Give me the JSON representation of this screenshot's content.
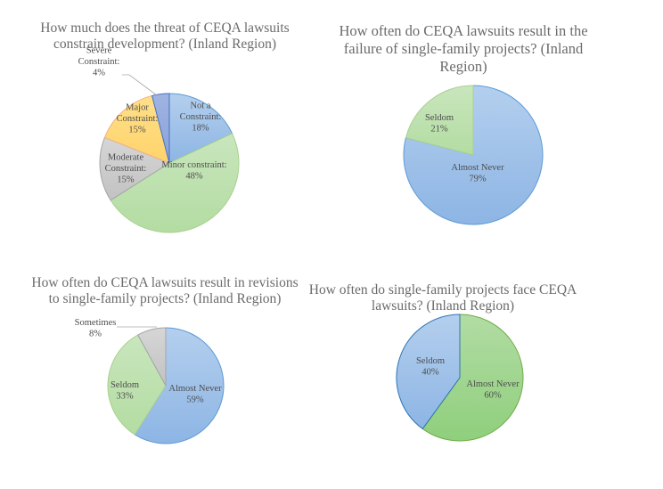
{
  "chart_data": [
    {
      "type": "pie",
      "title": [
        "How much does the threat of CEQA lawsuits",
        "constrain development? (Inland Region)"
      ],
      "slices": [
        {
          "label": [
            "Not a",
            "Constraint:",
            "18%"
          ],
          "value": 18,
          "color": "#9dc3e6",
          "stroke": "#5b9bd5"
        },
        {
          "label": [
            "Minor constraint:",
            "48%"
          ],
          "value": 48,
          "color": "#c5e0b4",
          "stroke": "#a9d18e"
        },
        {
          "label": [
            "Moderate",
            "Constraint:",
            "15%"
          ],
          "value": 15,
          "color": "#d0d0d0",
          "stroke": "#a5a5a5"
        },
        {
          "label": [
            "Major",
            "Constraint:",
            "15%"
          ],
          "value": 15,
          "color": "#ffd966",
          "stroke": "#f4b183"
        },
        {
          "label": [
            "Severe",
            "Constraint:",
            "4%"
          ],
          "value": 4,
          "color": "#8ea9db",
          "stroke": "#4472c4",
          "external_label": true
        }
      ]
    },
    {
      "type": "pie",
      "title": [
        "How often do CEQA lawsuits result in the",
        "failure of single-family projects? (Inland",
        "Region)"
      ],
      "slices": [
        {
          "label": [
            "Almost Never",
            "79%"
          ],
          "value": 79,
          "color": "#9dc3e6",
          "stroke": "#5b9bd5"
        },
        {
          "label": [
            "Seldom",
            "21%"
          ],
          "value": 21,
          "color": "#c5e0b4",
          "stroke": "#a9d18e"
        }
      ]
    },
    {
      "type": "pie",
      "title": [
        "How often do CEQA lawsuits result in revisions",
        "to single-family projects? (Inland Region)"
      ],
      "slices": [
        {
          "label": [
            "Almost Never",
            "59%"
          ],
          "value": 59,
          "color": "#9dc3e6",
          "stroke": "#5b9bd5"
        },
        {
          "label": [
            "Seldom",
            "33%"
          ],
          "value": 33,
          "color": "#c5e0b4",
          "stroke": "#a9d18e"
        },
        {
          "label": [
            "Sometimes",
            "8%"
          ],
          "value": 8,
          "color": "#d0d0d0",
          "stroke": "#a5a5a5",
          "external_label": true
        }
      ]
    },
    {
      "type": "pie",
      "title": [
        "How often do single-family projects face CEQA",
        "lawsuits? (Inland Region)"
      ],
      "slices": [
        {
          "label": [
            "Almost Never",
            "60%"
          ],
          "value": 60,
          "color": "#a9d18e",
          "stroke": "#70ad47"
        },
        {
          "label": [
            "Seldom",
            "40%"
          ],
          "value": 40,
          "color": "#9dc3e6",
          "stroke": "#2e75b6"
        }
      ]
    }
  ]
}
